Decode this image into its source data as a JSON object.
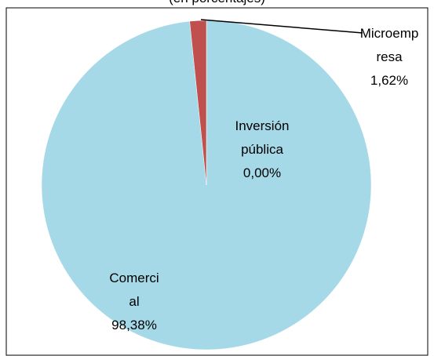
{
  "chart_data": {
    "type": "pie",
    "subtitle": "(en porcentajes)",
    "categories": [
      "Inversión pública",
      "Comercial",
      "Microempresa"
    ],
    "values": [
      0.0,
      98.38,
      1.62
    ],
    "value_labels": [
      "0,00%",
      "98,38%",
      "1,62%"
    ],
    "colors": [
      "#4f81bd",
      "#a5d9e8",
      "#c0504d"
    ]
  }
}
